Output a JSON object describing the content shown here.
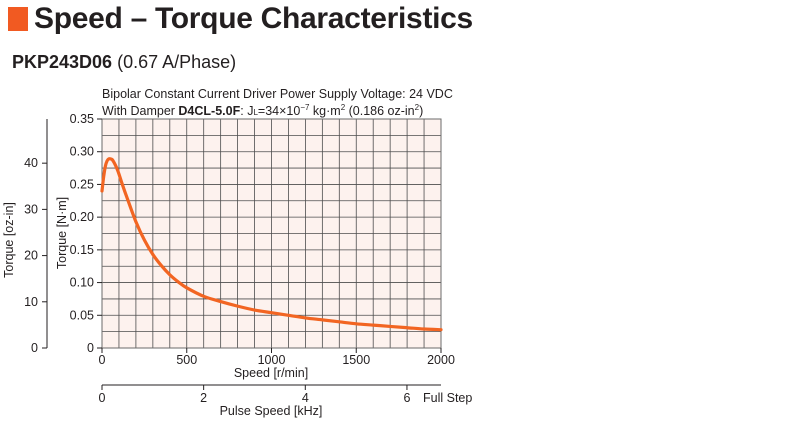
{
  "header": {
    "title": "Speed – Torque Characteristics",
    "accent_color": "#f15a22"
  },
  "model": {
    "name": "PKP243D06",
    "current": "(0.67 A/Phase)"
  },
  "annotation": {
    "line1": "Bipolar Constant Current Driver  Power Supply Voltage: 24 VDC",
    "line2_prefix": "With Damper ",
    "damper_model": "D4CL-5.0F",
    "inertia_j": "J",
    "inertia_sub": "L",
    "inertia_eq": "=34×10",
    "inertia_exp": "−7",
    "inertia_unit": " kg·m",
    "inertia_unit_exp": "2",
    "inertia_imperial": " (0.186 oz-in",
    "inertia_imperial_exp": "2",
    "inertia_imperial_close": ")"
  },
  "chart_data": {
    "type": "line",
    "title": "Speed – Torque Characteristics",
    "xlabel": "Speed [r/min]",
    "ylabel": "Torque [N·m]",
    "y2label": "Torque [oz-in]",
    "x2label": "Pulse Speed [kHz]",
    "x2_suffix": "Full Step",
    "xlim": [
      0,
      2000
    ],
    "ylim": [
      0,
      0.35
    ],
    "y2lim": [
      0,
      49.56
    ],
    "x2lim": [
      0,
      6.67
    ],
    "x_ticks": [
      "0",
      "500",
      "1000",
      "1500",
      "2000"
    ],
    "y_ticks": [
      "0",
      "0.05",
      "0.10",
      "0.15",
      "0.20",
      "0.25",
      "0.30",
      "0.35"
    ],
    "y2_ticks": [
      "0",
      "10",
      "20",
      "30",
      "40"
    ],
    "x2_ticks": [
      "0",
      "2",
      "4",
      "6"
    ],
    "grid": true,
    "series": [
      {
        "color": "#f26522",
        "x": [
          0,
          10,
          20,
          30,
          40,
          50,
          60,
          70,
          80,
          90,
          100,
          120,
          150,
          200,
          250,
          300,
          350,
          400,
          450,
          500,
          600,
          700,
          800,
          900,
          1000,
          1100,
          1200,
          1300,
          1400,
          1500,
          1600,
          1700,
          1800,
          1900,
          2000
        ],
        "y": [
          0.24,
          0.262,
          0.278,
          0.286,
          0.289,
          0.289,
          0.288,
          0.284,
          0.279,
          0.273,
          0.266,
          0.25,
          0.228,
          0.193,
          0.165,
          0.143,
          0.126,
          0.112,
          0.101,
          0.092,
          0.079,
          0.071,
          0.064,
          0.058,
          0.054,
          0.05,
          0.046,
          0.043,
          0.04,
          0.037,
          0.035,
          0.033,
          0.031,
          0.029,
          0.028
        ]
      }
    ]
  }
}
